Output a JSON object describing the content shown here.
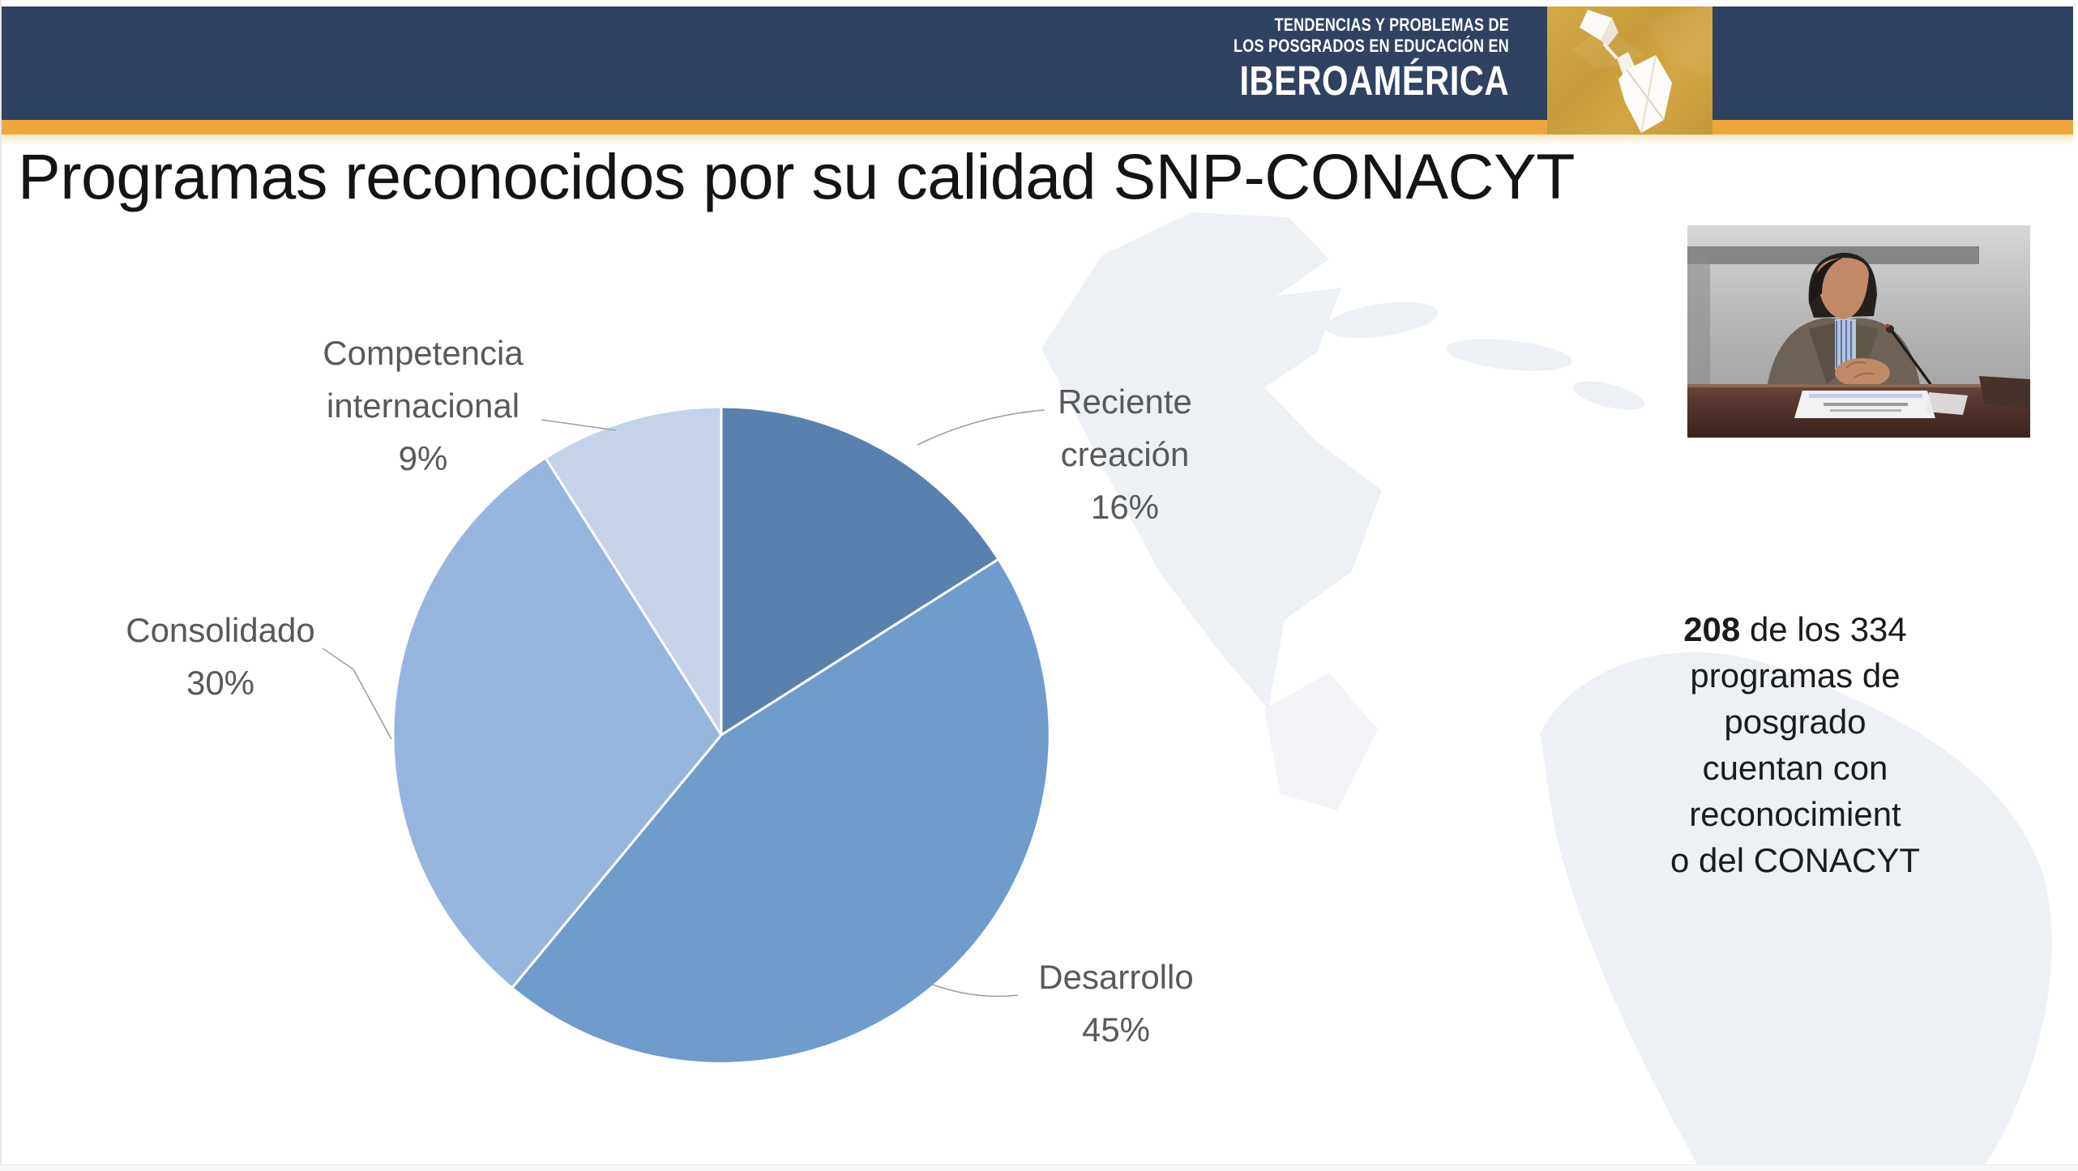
{
  "header": {
    "banner_line1": "TENDENCIAS Y PROBLEMAS DE",
    "banner_line2": "LOS POSGRADOS EN EDUCACIÓN EN",
    "banner_line3": "IBEROAMÉRICA",
    "colors": {
      "bar": "#2f4262",
      "stripe": "#efa63d",
      "logo_gold": "#c99f3d"
    }
  },
  "slide": {
    "title": "Programas reconocidos por su calidad SNP-CONACYT",
    "note": {
      "bold": "208",
      "line1_rest": " de los 334",
      "lines": [
        "programas de",
        "posgrado",
        "cuentan con",
        "reconocimient",
        "o del CONACYT"
      ]
    }
  },
  "chart_data": {
    "type": "pie",
    "title": "Programas reconocidos por su calidad SNP-CONACYT",
    "start_angle_deg": 0,
    "direction": "clockwise",
    "legend_position": "outside-callouts",
    "segments": [
      {
        "label": "Reciente creación",
        "value": 16,
        "pct_text": "16%",
        "label_lines": [
          "Reciente",
          "creación"
        ],
        "color": "#5a81ad"
      },
      {
        "label": "Desarrollo",
        "value": 45,
        "pct_text": "45%",
        "label_lines": [
          "Desarrollo"
        ],
        "color": "#6f9bcd"
      },
      {
        "label": "Consolidado",
        "value": 30,
        "pct_text": "30%",
        "label_lines": [
          "Consolidado"
        ],
        "color": "#97b6de"
      },
      {
        "label": "Competencia internacional",
        "value": 9,
        "pct_text": "9%",
        "label_lines": [
          "Competencia",
          "internacional"
        ],
        "color": "#c4d3ea"
      }
    ]
  }
}
